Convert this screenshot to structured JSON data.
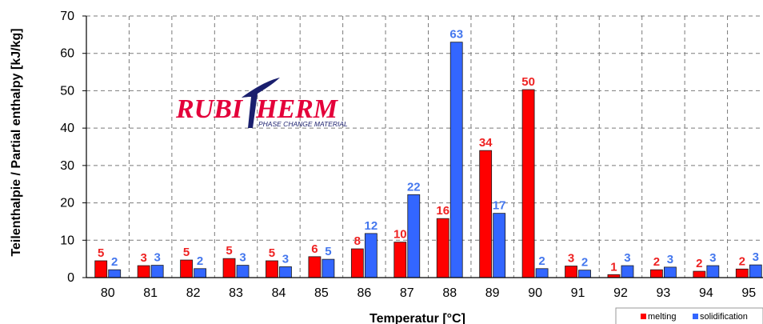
{
  "logo": {
    "brand": "RUBITHERM",
    "brand_left": "RUBI",
    "brand_right": "HERM",
    "tagline": "PHASE CHANGE MATERIAL"
  },
  "chart_data": {
    "type": "bar",
    "xlabel": "Temperatur [°C]",
    "ylabel": "Teilenthalpie / Partial enthalpy [kJ/kg]",
    "ylim": [
      0,
      70
    ],
    "yticks": [
      0,
      10,
      20,
      30,
      40,
      50,
      60,
      70
    ],
    "grid": true,
    "legend_position": "bottom-right",
    "categories": [
      "80",
      "81",
      "82",
      "83",
      "84",
      "85",
      "86",
      "87",
      "88",
      "89",
      "90",
      "91",
      "92",
      "93",
      "94",
      "95"
    ],
    "series": [
      {
        "name": "melting",
        "color": "#ff0000",
        "label_color": "#ee2222",
        "values": [
          4.5,
          3.2,
          4.7,
          5.1,
          4.5,
          5.6,
          7.7,
          9.5,
          15.8,
          34,
          50.3,
          3.1,
          0.8,
          2.1,
          1.7,
          2.3
        ],
        "labels": [
          "5",
          "3",
          "5",
          "5",
          "5",
          "6",
          "8",
          "10",
          "16",
          "34",
          "50",
          "3",
          "1",
          "2",
          "2",
          "2"
        ]
      },
      {
        "name": "solidification",
        "color": "#3366ff",
        "label_color": "#4477ee",
        "values": [
          2.1,
          3.3,
          2.4,
          3.3,
          2.9,
          4.9,
          11.8,
          22.2,
          63,
          17.2,
          2.4,
          2.0,
          3.2,
          2.8,
          3.2,
          3.4
        ],
        "labels": [
          "2",
          "3",
          "2",
          "3",
          "3",
          "5",
          "12",
          "22",
          "63",
          "17",
          "2",
          "2",
          "3",
          "3",
          "3",
          "3"
        ]
      }
    ]
  }
}
